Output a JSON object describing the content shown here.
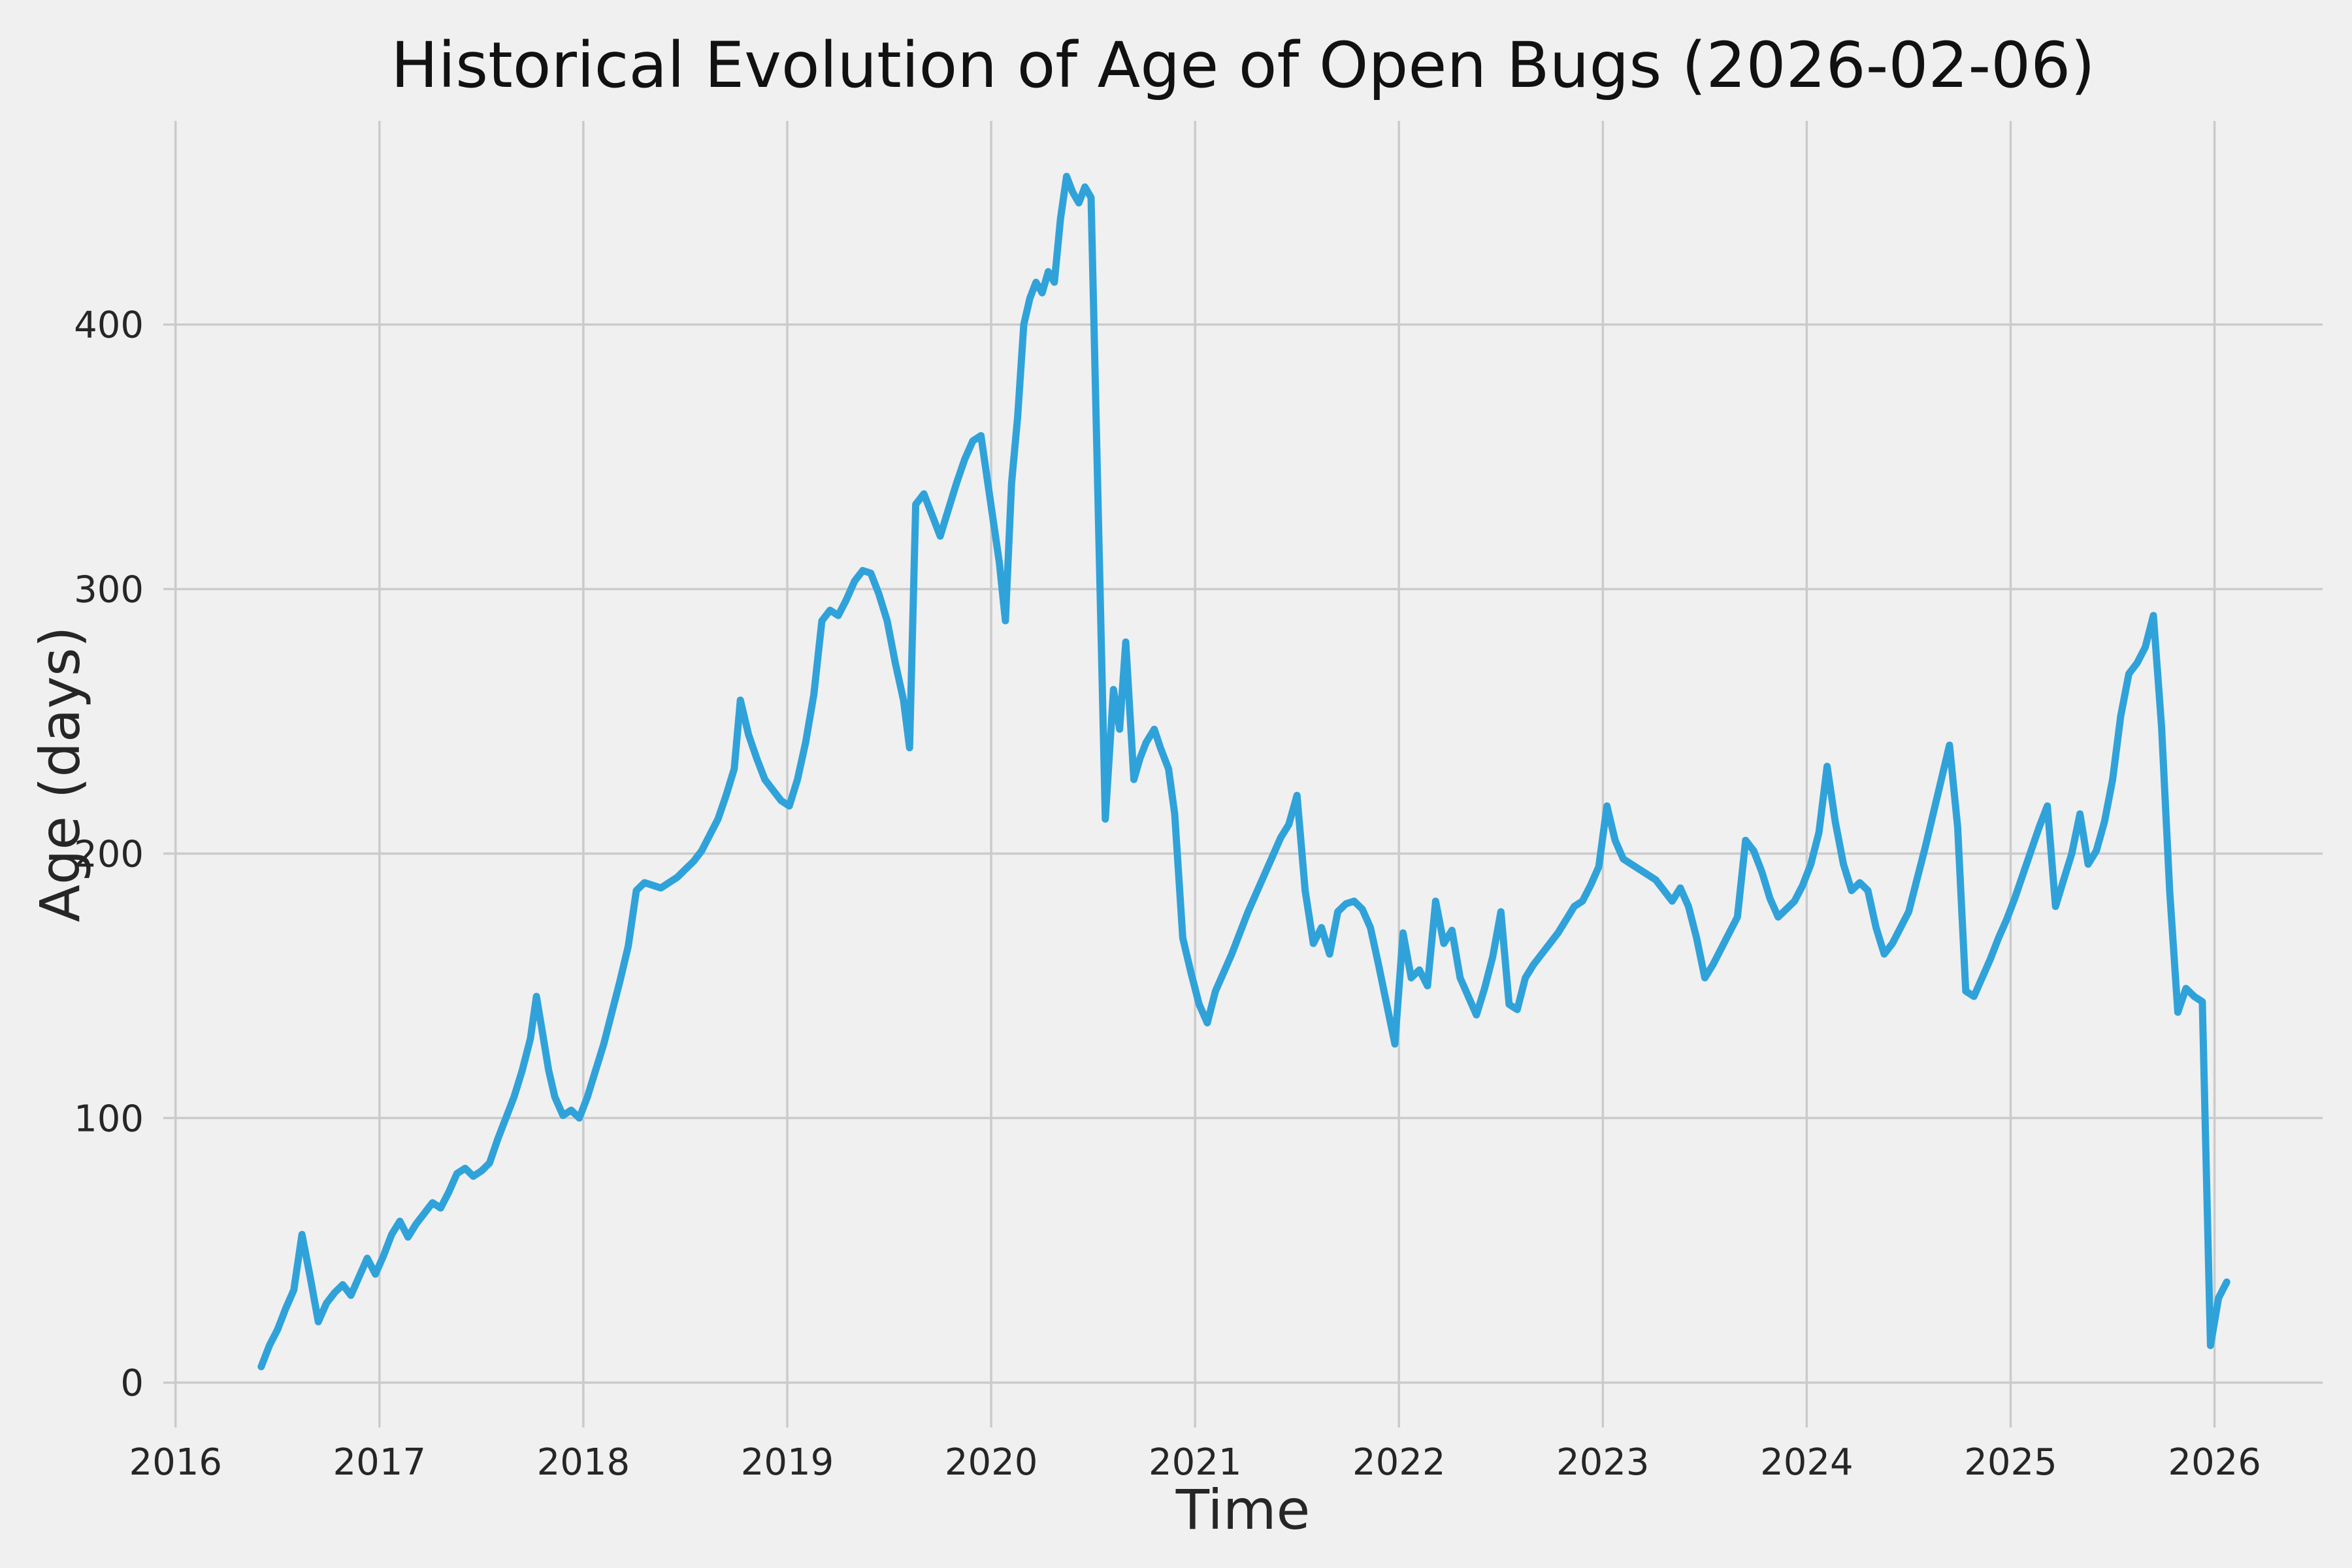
{
  "figure": {
    "title": "Historical Evolution of Age of Open Bugs (2026-02-06)"
  },
  "chart_data": {
    "type": "line",
    "title": "Historical Evolution of Age of Open Bugs (2026-02-06)",
    "xlabel": "Time",
    "ylabel": "Age (days)",
    "legend": "none",
    "grid": true,
    "style": "fivethirtyeight",
    "line_color": "#30a2da",
    "line_width": 11,
    "background_color": "#f0f0f0",
    "grid_color": "#cbcbcb",
    "text_color": "#262626",
    "xlim": [
      2015.94,
      2026.53
    ],
    "ylim": [
      -17,
      477
    ],
    "x_ticks": [
      2016,
      2017,
      2018,
      2019,
      2020,
      2021,
      2022,
      2023,
      2024,
      2025,
      2026
    ],
    "y_ticks": [
      0,
      100,
      200,
      300,
      400
    ],
    "series": [
      {
        "name": "Age of Open Bugs",
        "points": [
          [
            2016.42,
            6
          ],
          [
            2016.46,
            14
          ],
          [
            2016.5,
            20
          ],
          [
            2016.54,
            28
          ],
          [
            2016.58,
            35
          ],
          [
            2016.62,
            56
          ],
          [
            2016.66,
            40
          ],
          [
            2016.7,
            23
          ],
          [
            2016.74,
            30
          ],
          [
            2016.78,
            34
          ],
          [
            2016.82,
            37
          ],
          [
            2016.86,
            33
          ],
          [
            2016.9,
            40
          ],
          [
            2016.94,
            47
          ],
          [
            2016.98,
            41
          ],
          [
            2017.02,
            48
          ],
          [
            2017.06,
            56
          ],
          [
            2017.1,
            61
          ],
          [
            2017.14,
            55
          ],
          [
            2017.18,
            60
          ],
          [
            2017.22,
            64
          ],
          [
            2017.26,
            68
          ],
          [
            2017.3,
            66
          ],
          [
            2017.34,
            72
          ],
          [
            2017.38,
            79
          ],
          [
            2017.42,
            81
          ],
          [
            2017.46,
            78
          ],
          [
            2017.5,
            80
          ],
          [
            2017.54,
            83
          ],
          [
            2017.58,
            92
          ],
          [
            2017.62,
            100
          ],
          [
            2017.66,
            108
          ],
          [
            2017.7,
            118
          ],
          [
            2017.74,
            130
          ],
          [
            2017.77,
            146
          ],
          [
            2017.8,
            132
          ],
          [
            2017.83,
            118
          ],
          [
            2017.86,
            108
          ],
          [
            2017.9,
            101
          ],
          [
            2017.94,
            103
          ],
          [
            2017.98,
            100
          ],
          [
            2018.02,
            108
          ],
          [
            2018.06,
            118
          ],
          [
            2018.1,
            128
          ],
          [
            2018.14,
            140
          ],
          [
            2018.18,
            152
          ],
          [
            2018.22,
            165
          ],
          [
            2018.26,
            186
          ],
          [
            2018.3,
            189
          ],
          [
            2018.34,
            188
          ],
          [
            2018.38,
            187
          ],
          [
            2018.42,
            189
          ],
          [
            2018.46,
            191
          ],
          [
            2018.5,
            194
          ],
          [
            2018.54,
            197
          ],
          [
            2018.58,
            201
          ],
          [
            2018.62,
            207
          ],
          [
            2018.66,
            213
          ],
          [
            2018.7,
            222
          ],
          [
            2018.74,
            232
          ],
          [
            2018.77,
            258
          ],
          [
            2018.81,
            245
          ],
          [
            2018.85,
            236
          ],
          [
            2018.89,
            228
          ],
          [
            2018.93,
            224
          ],
          [
            2018.97,
            220
          ],
          [
            2019.01,
            218
          ],
          [
            2019.05,
            228
          ],
          [
            2019.09,
            242
          ],
          [
            2019.13,
            260
          ],
          [
            2019.17,
            288
          ],
          [
            2019.21,
            292
          ],
          [
            2019.25,
            290
          ],
          [
            2019.29,
            296
          ],
          [
            2019.33,
            303
          ],
          [
            2019.37,
            307
          ],
          [
            2019.41,
            306
          ],
          [
            2019.45,
            298
          ],
          [
            2019.49,
            288
          ],
          [
            2019.53,
            272
          ],
          [
            2019.57,
            258
          ],
          [
            2019.6,
            240
          ],
          [
            2019.63,
            332
          ],
          [
            2019.67,
            336
          ],
          [
            2019.71,
            328
          ],
          [
            2019.75,
            320
          ],
          [
            2019.79,
            330
          ],
          [
            2019.83,
            340
          ],
          [
            2019.87,
            349
          ],
          [
            2019.91,
            356
          ],
          [
            2019.95,
            358
          ],
          [
            2019.98,
            342
          ],
          [
            2020.01,
            326
          ],
          [
            2020.04,
            310
          ],
          [
            2020.07,
            288
          ],
          [
            2020.1,
            340
          ],
          [
            2020.13,
            365
          ],
          [
            2020.16,
            400
          ],
          [
            2020.19,
            410
          ],
          [
            2020.22,
            416
          ],
          [
            2020.25,
            412
          ],
          [
            2020.28,
            420
          ],
          [
            2020.31,
            416
          ],
          [
            2020.34,
            440
          ],
          [
            2020.37,
            456
          ],
          [
            2020.4,
            450
          ],
          [
            2020.43,
            446
          ],
          [
            2020.46,
            452
          ],
          [
            2020.49,
            448
          ],
          [
            2020.56,
            213
          ],
          [
            2020.6,
            262
          ],
          [
            2020.63,
            247
          ],
          [
            2020.66,
            280
          ],
          [
            2020.7,
            228
          ],
          [
            2020.73,
            236
          ],
          [
            2020.76,
            242
          ],
          [
            2020.8,
            247
          ],
          [
            2020.83,
            240
          ],
          [
            2020.87,
            232
          ],
          [
            2020.9,
            215
          ],
          [
            2020.94,
            168
          ],
          [
            2020.98,
            155
          ],
          [
            2021.02,
            143
          ],
          [
            2021.06,
            136
          ],
          [
            2021.1,
            148
          ],
          [
            2021.14,
            155
          ],
          [
            2021.18,
            162
          ],
          [
            2021.22,
            170
          ],
          [
            2021.26,
            178
          ],
          [
            2021.3,
            185
          ],
          [
            2021.34,
            192
          ],
          [
            2021.38,
            199
          ],
          [
            2021.42,
            206
          ],
          [
            2021.46,
            211
          ],
          [
            2021.5,
            222
          ],
          [
            2021.54,
            186
          ],
          [
            2021.58,
            166
          ],
          [
            2021.62,
            172
          ],
          [
            2021.66,
            162
          ],
          [
            2021.7,
            178
          ],
          [
            2021.74,
            181
          ],
          [
            2021.78,
            182
          ],
          [
            2021.82,
            179
          ],
          [
            2021.86,
            172
          ],
          [
            2021.9,
            158
          ],
          [
            2021.94,
            143
          ],
          [
            2021.98,
            128
          ],
          [
            2022.02,
            170
          ],
          [
            2022.06,
            153
          ],
          [
            2022.1,
            156
          ],
          [
            2022.14,
            150
          ],
          [
            2022.18,
            182
          ],
          [
            2022.22,
            166
          ],
          [
            2022.26,
            171
          ],
          [
            2022.3,
            153
          ],
          [
            2022.34,
            146
          ],
          [
            2022.38,
            139
          ],
          [
            2022.42,
            149
          ],
          [
            2022.46,
            161
          ],
          [
            2022.5,
            178
          ],
          [
            2022.54,
            143
          ],
          [
            2022.58,
            141
          ],
          [
            2022.62,
            153
          ],
          [
            2022.66,
            158
          ],
          [
            2022.7,
            162
          ],
          [
            2022.74,
            166
          ],
          [
            2022.78,
            170
          ],
          [
            2022.82,
            175
          ],
          [
            2022.86,
            180
          ],
          [
            2022.9,
            182
          ],
          [
            2022.94,
            188
          ],
          [
            2022.98,
            195
          ],
          [
            2023.02,
            218
          ],
          [
            2023.06,
            205
          ],
          [
            2023.1,
            198
          ],
          [
            2023.14,
            196
          ],
          [
            2023.18,
            194
          ],
          [
            2023.22,
            192
          ],
          [
            2023.26,
            190
          ],
          [
            2023.3,
            186
          ],
          [
            2023.34,
            182
          ],
          [
            2023.38,
            187
          ],
          [
            2023.42,
            180
          ],
          [
            2023.46,
            168
          ],
          [
            2023.5,
            153
          ],
          [
            2023.54,
            158
          ],
          [
            2023.58,
            164
          ],
          [
            2023.62,
            170
          ],
          [
            2023.66,
            176
          ],
          [
            2023.7,
            205
          ],
          [
            2023.74,
            201
          ],
          [
            2023.78,
            193
          ],
          [
            2023.82,
            183
          ],
          [
            2023.86,
            176
          ],
          [
            2023.9,
            179
          ],
          [
            2023.94,
            182
          ],
          [
            2023.98,
            188
          ],
          [
            2024.02,
            196
          ],
          [
            2024.06,
            208
          ],
          [
            2024.1,
            233
          ],
          [
            2024.14,
            212
          ],
          [
            2024.18,
            196
          ],
          [
            2024.22,
            186
          ],
          [
            2024.26,
            189
          ],
          [
            2024.3,
            186
          ],
          [
            2024.34,
            172
          ],
          [
            2024.38,
            162
          ],
          [
            2024.42,
            166
          ],
          [
            2024.46,
            172
          ],
          [
            2024.5,
            178
          ],
          [
            2024.54,
            190
          ],
          [
            2024.58,
            202
          ],
          [
            2024.62,
            215
          ],
          [
            2024.66,
            228
          ],
          [
            2024.7,
            241
          ],
          [
            2024.74,
            210
          ],
          [
            2024.78,
            148
          ],
          [
            2024.82,
            146
          ],
          [
            2024.86,
            153
          ],
          [
            2024.9,
            160
          ],
          [
            2024.94,
            168
          ],
          [
            2024.98,
            175
          ],
          [
            2025.02,
            183
          ],
          [
            2025.06,
            192
          ],
          [
            2025.1,
            201
          ],
          [
            2025.14,
            210
          ],
          [
            2025.18,
            218
          ],
          [
            2025.22,
            180
          ],
          [
            2025.26,
            190
          ],
          [
            2025.3,
            200
          ],
          [
            2025.34,
            215
          ],
          [
            2025.38,
            196
          ],
          [
            2025.42,
            201
          ],
          [
            2025.46,
            212
          ],
          [
            2025.5,
            228
          ],
          [
            2025.54,
            252
          ],
          [
            2025.58,
            268
          ],
          [
            2025.62,
            272
          ],
          [
            2025.66,
            278
          ],
          [
            2025.7,
            290
          ],
          [
            2025.74,
            248
          ],
          [
            2025.78,
            186
          ],
          [
            2025.82,
            140
          ],
          [
            2025.86,
            149
          ],
          [
            2025.9,
            146
          ],
          [
            2025.94,
            144
          ],
          [
            2025.98,
            14
          ],
          [
            2026.02,
            32
          ],
          [
            2026.06,
            38
          ]
        ]
      }
    ]
  }
}
